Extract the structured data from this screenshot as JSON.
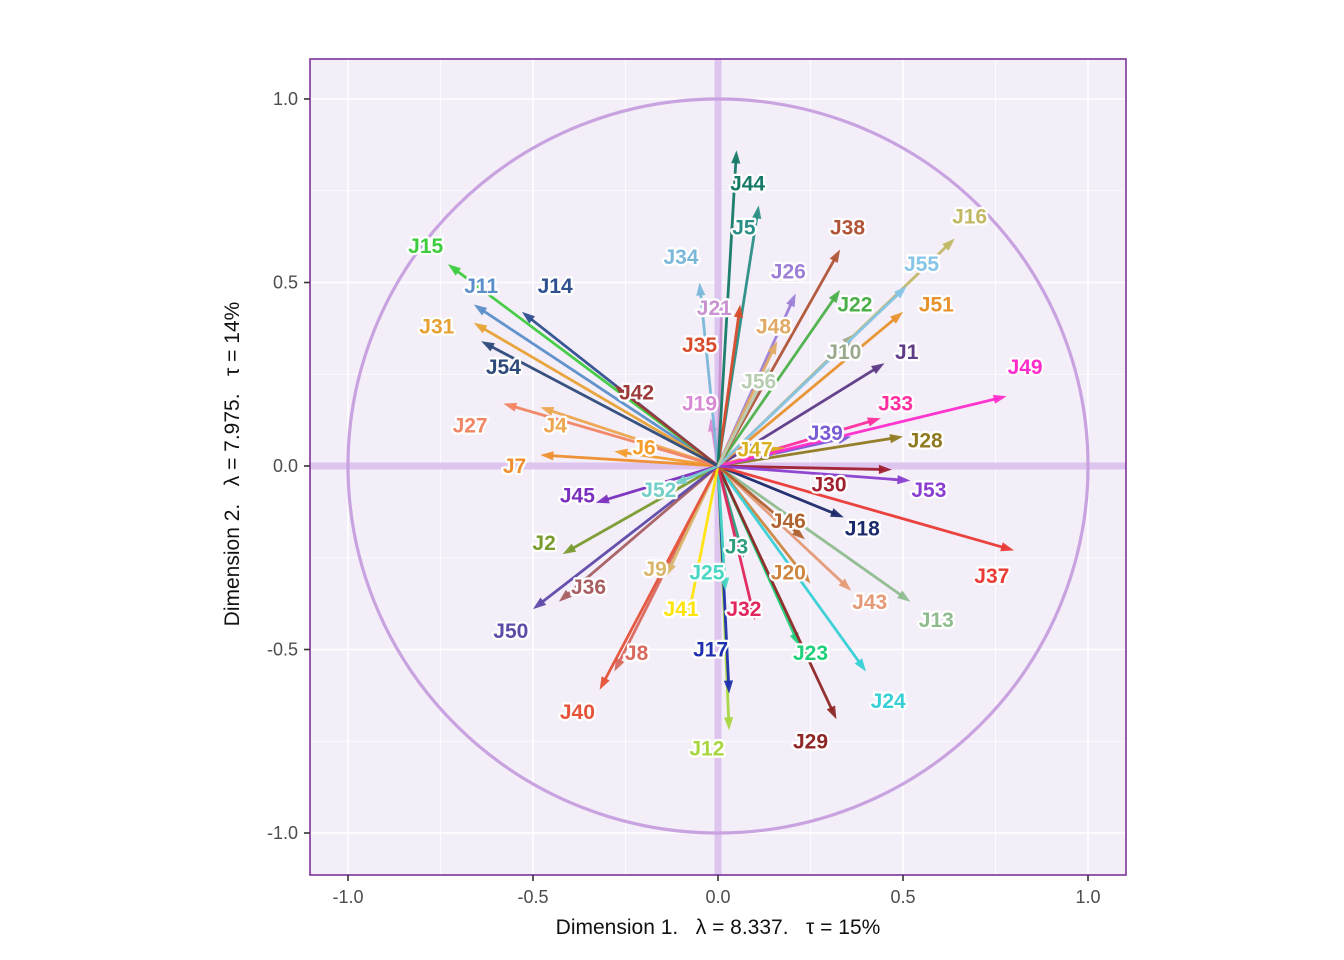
{
  "figure": {
    "panel_bg": "#f3eef8",
    "panel_border": "#7d3398",
    "grid_color": "#ffffff",
    "crosshair_color": "#ddc5f0",
    "circle_color": "#c9a2e0",
    "axis_text_color": "#4d4d4d",
    "axis_title_color": "#111111"
  },
  "axes": {
    "x_title": "Dimension 1.   λ = 8.337.   τ = 15%",
    "y_title": "Dimension 2.   λ = 7.975.   τ = 14%"
  },
  "chart_data": {
    "type": "scatter",
    "variant": "correlation-circle-biplot",
    "title": "",
    "xlabel": "Dimension 1.   λ = 8.337.   τ = 15%",
    "ylabel": "Dimension 2.   λ = 7.975.   τ = 14%",
    "xlim": [
      -1.1,
      1.1
    ],
    "ylim": [
      -1.1,
      1.1
    ],
    "x_ticks": [
      -1.0,
      -0.5,
      0.0,
      0.5,
      1.0
    ],
    "y_ticks": [
      -1.0,
      -0.5,
      0.0,
      0.5,
      1.0
    ],
    "unit_circle": true,
    "grid": true,
    "vectors": [
      {
        "label": "J1",
        "x": 0.45,
        "y": 0.28,
        "label_x": 0.51,
        "label_y": 0.31,
        "color": "#5e3a87"
      },
      {
        "label": "J2",
        "x": -0.42,
        "y": -0.24,
        "label_x": -0.47,
        "label_y": -0.21,
        "color": "#7a9b2e"
      },
      {
        "label": "J3",
        "x": 0.07,
        "y": -0.25,
        "label_x": 0.05,
        "label_y": -0.22,
        "color": "#2e9e7e"
      },
      {
        "label": "J4",
        "x": -0.48,
        "y": 0.16,
        "label_x": -0.44,
        "label_y": 0.11,
        "color": "#eda64e"
      },
      {
        "label": "J5",
        "x": 0.11,
        "y": 0.71,
        "label_x": 0.07,
        "label_y": 0.65,
        "color": "#2a8f86"
      },
      {
        "label": "J6",
        "x": -0.28,
        "y": 0.04,
        "label_x": -0.2,
        "label_y": 0.05,
        "color": "#f59d2f"
      },
      {
        "label": "J7",
        "x": -0.48,
        "y": 0.03,
        "label_x": -0.55,
        "label_y": 0.0,
        "color": "#ef8f2f"
      },
      {
        "label": "J8",
        "x": -0.28,
        "y": -0.56,
        "label_x": -0.22,
        "label_y": -0.51,
        "color": "#d96a5f"
      },
      {
        "label": "J9",
        "x": -0.14,
        "y": -0.3,
        "label_x": -0.17,
        "label_y": -0.28,
        "color": "#d9b66a"
      },
      {
        "label": "J10",
        "x": 0.37,
        "y": 0.36,
        "label_x": 0.34,
        "label_y": 0.31,
        "color": "#9aa98e"
      },
      {
        "label": "J11",
        "x": -0.66,
        "y": 0.44,
        "label_x": -0.64,
        "label_y": 0.49,
        "color": "#5b8fc9"
      },
      {
        "label": "J12",
        "x": 0.03,
        "y": -0.72,
        "label_x": -0.03,
        "label_y": -0.77,
        "color": "#a8d641"
      },
      {
        "label": "J13",
        "x": 0.52,
        "y": -0.37,
        "label_x": 0.59,
        "label_y": -0.42,
        "color": "#8fbc8f"
      },
      {
        "label": "J14",
        "x": -0.53,
        "y": 0.42,
        "label_x": -0.44,
        "label_y": 0.49,
        "color": "#2f4f8f"
      },
      {
        "label": "J15",
        "x": -0.73,
        "y": 0.55,
        "label_x": -0.79,
        "label_y": 0.6,
        "color": "#3ecc3e"
      },
      {
        "label": "J16",
        "x": 0.64,
        "y": 0.62,
        "label_x": 0.68,
        "label_y": 0.68,
        "color": "#c2b765"
      },
      {
        "label": "J17",
        "x": 0.03,
        "y": -0.62,
        "label_x": -0.02,
        "label_y": -0.5,
        "color": "#1f2fae"
      },
      {
        "label": "J18",
        "x": 0.34,
        "y": -0.14,
        "label_x": 0.39,
        "label_y": -0.17,
        "color": "#1b2a6b"
      },
      {
        "label": "J19",
        "x": -0.02,
        "y": 0.13,
        "label_x": -0.05,
        "label_y": 0.17,
        "color": "#d98ad4"
      },
      {
        "label": "J20",
        "x": 0.25,
        "y": -0.32,
        "label_x": 0.19,
        "label_y": -0.29,
        "color": "#cd8540"
      },
      {
        "label": "J21",
        "x": 0.01,
        "y": 0.45,
        "label_x": -0.01,
        "label_y": 0.43,
        "color": "#c993cf"
      },
      {
        "label": "J22",
        "x": 0.33,
        "y": 0.48,
        "label_x": 0.37,
        "label_y": 0.44,
        "color": "#4cb04a"
      },
      {
        "label": "J23",
        "x": 0.22,
        "y": -0.49,
        "label_x": 0.25,
        "label_y": -0.51,
        "color": "#1fd07a"
      },
      {
        "label": "J24",
        "x": 0.4,
        "y": -0.56,
        "label_x": 0.46,
        "label_y": -0.64,
        "color": "#37d0d6"
      },
      {
        "label": "J25",
        "x": 0.02,
        "y": -0.34,
        "label_x": -0.03,
        "label_y": -0.29,
        "color": "#49d6c3"
      },
      {
        "label": "J26",
        "x": 0.21,
        "y": 0.47,
        "label_x": 0.19,
        "label_y": 0.53,
        "color": "#9d7fd6"
      },
      {
        "label": "J27",
        "x": -0.58,
        "y": 0.17,
        "label_x": -0.67,
        "label_y": 0.11,
        "color": "#f28563"
      },
      {
        "label": "J28",
        "x": 0.5,
        "y": 0.08,
        "label_x": 0.56,
        "label_y": 0.07,
        "color": "#8f7a1f"
      },
      {
        "label": "J29",
        "x": 0.32,
        "y": -0.69,
        "label_x": 0.25,
        "label_y": -0.75,
        "color": "#8f2727"
      },
      {
        "label": "J30",
        "x": 0.47,
        "y": -0.01,
        "label_x": 0.3,
        "label_y": -0.05,
        "color": "#a02030"
      },
      {
        "label": "J31",
        "x": -0.66,
        "y": 0.39,
        "label_x": -0.76,
        "label_y": 0.38,
        "color": "#e8a234"
      },
      {
        "label": "J32",
        "x": 0.1,
        "y": -0.42,
        "label_x": 0.07,
        "label_y": -0.39,
        "color": "#e0265c"
      },
      {
        "label": "J33",
        "x": 0.44,
        "y": 0.13,
        "label_x": 0.48,
        "label_y": 0.17,
        "color": "#ff2fa0"
      },
      {
        "label": "J34",
        "x": -0.05,
        "y": 0.5,
        "label_x": -0.1,
        "label_y": 0.57,
        "color": "#7ab8d9"
      },
      {
        "label": "J35",
        "x": 0.06,
        "y": 0.44,
        "label_x": -0.05,
        "label_y": 0.33,
        "color": "#d84b2b"
      },
      {
        "label": "J36",
        "x": -0.43,
        "y": -0.37,
        "label_x": -0.35,
        "label_y": -0.33,
        "color": "#a85f62"
      },
      {
        "label": "J37",
        "x": 0.8,
        "y": -0.23,
        "label_x": 0.74,
        "label_y": -0.3,
        "color": "#ea3a34"
      },
      {
        "label": "J38",
        "x": 0.33,
        "y": 0.59,
        "label_x": 0.35,
        "label_y": 0.65,
        "color": "#b15538"
      },
      {
        "label": "J39",
        "x": 0.36,
        "y": 0.08,
        "label_x": 0.29,
        "label_y": 0.09,
        "color": "#7a5bd6"
      },
      {
        "label": "J40",
        "x": -0.32,
        "y": -0.61,
        "label_x": -0.38,
        "label_y": -0.67,
        "color": "#e6533a"
      },
      {
        "label": "J41",
        "x": -0.08,
        "y": -0.41,
        "label_x": -0.1,
        "label_y": -0.39,
        "color": "#ffe40a"
      },
      {
        "label": "J42",
        "x": -0.28,
        "y": 0.22,
        "label_x": -0.22,
        "label_y": 0.2,
        "color": "#9c3939"
      },
      {
        "label": "J43",
        "x": 0.36,
        "y": -0.34,
        "label_x": 0.41,
        "label_y": -0.37,
        "color": "#e59a77"
      },
      {
        "label": "J44",
        "x": 0.05,
        "y": 0.86,
        "label_x": 0.08,
        "label_y": 0.77,
        "color": "#167a66"
      },
      {
        "label": "J45",
        "x": -0.33,
        "y": -0.1,
        "label_x": -0.38,
        "label_y": -0.08,
        "color": "#7a2fbf"
      },
      {
        "label": "J46",
        "x": 0.235,
        "y": -0.2,
        "label_x": 0.19,
        "label_y": -0.15,
        "color": "#b0622f"
      },
      {
        "label": "J47",
        "x": 0.18,
        "y": 0.05,
        "label_x": 0.1,
        "label_y": 0.045,
        "color": "#d9b01f"
      },
      {
        "label": "J48",
        "x": 0.16,
        "y": 0.34,
        "label_x": 0.15,
        "label_y": 0.38,
        "color": "#e0aa66"
      },
      {
        "label": "J49",
        "x": 0.78,
        "y": 0.19,
        "label_x": 0.83,
        "label_y": 0.27,
        "color": "#ff2ccc"
      },
      {
        "label": "J50",
        "x": -0.5,
        "y": -0.39,
        "label_x": -0.56,
        "label_y": -0.45,
        "color": "#5f4aa8"
      },
      {
        "label": "J51",
        "x": 0.5,
        "y": 0.42,
        "label_x": 0.59,
        "label_y": 0.44,
        "color": "#e8922e"
      },
      {
        "label": "J52",
        "x": -0.12,
        "y": -0.05,
        "label_x": -0.16,
        "label_y": -0.065,
        "color": "#74cfc9"
      },
      {
        "label": "J53",
        "x": 0.52,
        "y": -0.04,
        "label_x": 0.57,
        "label_y": -0.065,
        "color": "#8a3fd1"
      },
      {
        "label": "J54",
        "x": -0.64,
        "y": 0.34,
        "label_x": -0.58,
        "label_y": 0.27,
        "color": "#2e4a7a"
      },
      {
        "label": "J55",
        "x": 0.51,
        "y": 0.49,
        "label_x": 0.55,
        "label_y": 0.55,
        "color": "#86c5e8"
      },
      {
        "label": "J56",
        "x": 0.14,
        "y": 0.27,
        "label_x": 0.11,
        "label_y": 0.23,
        "color": "#b8cdb2"
      }
    ]
  }
}
